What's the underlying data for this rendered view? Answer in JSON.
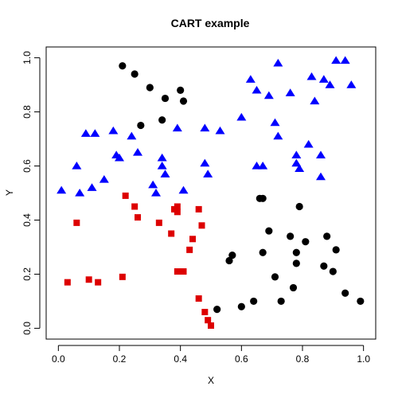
{
  "chart_data": {
    "type": "scatter",
    "title": "CART example",
    "xlabel": "X",
    "ylabel": "Y",
    "xlim": [
      -0.04,
      1.04
    ],
    "ylim": [
      -0.04,
      1.04
    ],
    "x_ticks": [
      0.0,
      0.2,
      0.4,
      0.6,
      0.8,
      1.0
    ],
    "x_tick_labels": [
      "0.0",
      "0.2",
      "0.4",
      "0.6",
      "0.8",
      "1.0"
    ],
    "y_ticks": [
      0.0,
      0.2,
      0.4,
      0.6,
      0.8,
      1.0
    ],
    "y_tick_labels": [
      "0.0",
      "0.2",
      "0.4",
      "0.6",
      "0.8",
      "1.0"
    ],
    "grid": false,
    "series": [
      {
        "marker": "triangle",
        "color": "#0000ff",
        "points": [
          [
            0.01,
            0.51
          ],
          [
            0.06,
            0.6
          ],
          [
            0.07,
            0.5
          ],
          [
            0.09,
            0.72
          ],
          [
            0.11,
            0.52
          ],
          [
            0.12,
            0.72
          ],
          [
            0.15,
            0.55
          ],
          [
            0.18,
            0.73
          ],
          [
            0.19,
            0.64
          ],
          [
            0.2,
            0.63
          ],
          [
            0.24,
            0.71
          ],
          [
            0.26,
            0.65
          ],
          [
            0.31,
            0.53
          ],
          [
            0.32,
            0.5
          ],
          [
            0.34,
            0.63
          ],
          [
            0.34,
            0.6
          ],
          [
            0.35,
            0.57
          ],
          [
            0.39,
            0.74
          ],
          [
            0.41,
            0.51
          ],
          [
            0.48,
            0.74
          ],
          [
            0.48,
            0.61
          ],
          [
            0.49,
            0.57
          ],
          [
            0.53,
            0.73
          ],
          [
            0.6,
            0.78
          ],
          [
            0.63,
            0.92
          ],
          [
            0.65,
            0.88
          ],
          [
            0.65,
            0.6
          ],
          [
            0.67,
            0.6
          ],
          [
            0.69,
            0.86
          ],
          [
            0.71,
            0.76
          ],
          [
            0.72,
            0.71
          ],
          [
            0.72,
            0.98
          ],
          [
            0.76,
            0.87
          ],
          [
            0.78,
            0.64
          ],
          [
            0.78,
            0.61
          ],
          [
            0.79,
            0.59
          ],
          [
            0.82,
            0.68
          ],
          [
            0.83,
            0.93
          ],
          [
            0.84,
            0.84
          ],
          [
            0.86,
            0.64
          ],
          [
            0.86,
            0.56
          ],
          [
            0.87,
            0.92
          ],
          [
            0.89,
            0.9
          ],
          [
            0.91,
            0.99
          ],
          [
            0.94,
            0.99
          ],
          [
            0.96,
            0.9
          ]
        ]
      },
      {
        "marker": "circle",
        "color": "#000000",
        "points": [
          [
            0.21,
            0.97
          ],
          [
            0.25,
            0.94
          ],
          [
            0.27,
            0.75
          ],
          [
            0.3,
            0.89
          ],
          [
            0.34,
            0.77
          ],
          [
            0.35,
            0.85
          ],
          [
            0.4,
            0.88
          ],
          [
            0.41,
            0.84
          ],
          [
            0.52,
            0.07
          ],
          [
            0.56,
            0.25
          ],
          [
            0.57,
            0.27
          ],
          [
            0.6,
            0.08
          ],
          [
            0.64,
            0.1
          ],
          [
            0.66,
            0.48
          ],
          [
            0.67,
            0.48
          ],
          [
            0.67,
            0.28
          ],
          [
            0.69,
            0.36
          ],
          [
            0.71,
            0.19
          ],
          [
            0.73,
            0.1
          ],
          [
            0.76,
            0.34
          ],
          [
            0.77,
            0.15
          ],
          [
            0.78,
            0.28
          ],
          [
            0.78,
            0.24
          ],
          [
            0.79,
            0.45
          ],
          [
            0.81,
            0.32
          ],
          [
            0.87,
            0.23
          ],
          [
            0.88,
            0.34
          ],
          [
            0.9,
            0.21
          ],
          [
            0.91,
            0.29
          ],
          [
            0.94,
            0.13
          ],
          [
            0.99,
            0.1
          ]
        ]
      },
      {
        "marker": "square",
        "color": "#dd0000",
        "points": [
          [
            0.03,
            0.17
          ],
          [
            0.06,
            0.39
          ],
          [
            0.1,
            0.18
          ],
          [
            0.13,
            0.17
          ],
          [
            0.21,
            0.19
          ],
          [
            0.22,
            0.49
          ],
          [
            0.25,
            0.45
          ],
          [
            0.26,
            0.41
          ],
          [
            0.33,
            0.39
          ],
          [
            0.37,
            0.35
          ],
          [
            0.38,
            0.44
          ],
          [
            0.39,
            0.45
          ],
          [
            0.39,
            0.43
          ],
          [
            0.39,
            0.21
          ],
          [
            0.41,
            0.21
          ],
          [
            0.43,
            0.29
          ],
          [
            0.44,
            0.33
          ],
          [
            0.46,
            0.44
          ],
          [
            0.46,
            0.11
          ],
          [
            0.47,
            0.38
          ],
          [
            0.48,
            0.06
          ],
          [
            0.49,
            0.03
          ],
          [
            0.5,
            0.01
          ]
        ]
      }
    ]
  }
}
